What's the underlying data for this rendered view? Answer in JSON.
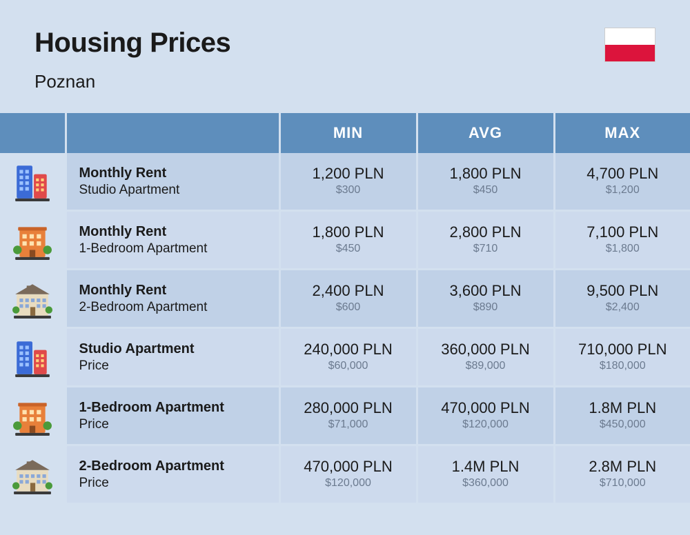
{
  "header": {
    "title": "Housing Prices",
    "city": "Poznan",
    "flag_colors": {
      "top": "#ffffff",
      "bottom": "#dc143c"
    }
  },
  "columns": {
    "min": "MIN",
    "avg": "AVG",
    "max": "MAX"
  },
  "colors": {
    "page_bg": "#d3e0ef",
    "header_row_bg": "#5e8ebc",
    "header_row_text": "#ffffff",
    "row_odd_bg": "#c0d1e7",
    "row_even_bg": "#cddaed",
    "text_primary": "#1a1a1a",
    "text_secondary": "#6b7a8f"
  },
  "icons": {
    "studio": "tall-buildings-icon",
    "onebed": "orange-apartment-icon",
    "twobed": "wide-house-icon"
  },
  "rows": [
    {
      "icon": "studio",
      "title": "Monthly Rent",
      "sub": "Studio Apartment",
      "min": {
        "pln": "1,200 PLN",
        "usd": "$300"
      },
      "avg": {
        "pln": "1,800 PLN",
        "usd": "$450"
      },
      "max": {
        "pln": "4,700 PLN",
        "usd": "$1,200"
      }
    },
    {
      "icon": "onebed",
      "title": "Monthly Rent",
      "sub": "1-Bedroom Apartment",
      "min": {
        "pln": "1,800 PLN",
        "usd": "$450"
      },
      "avg": {
        "pln": "2,800 PLN",
        "usd": "$710"
      },
      "max": {
        "pln": "7,100 PLN",
        "usd": "$1,800"
      }
    },
    {
      "icon": "twobed",
      "title": "Monthly Rent",
      "sub": "2-Bedroom Apartment",
      "min": {
        "pln": "2,400 PLN",
        "usd": "$600"
      },
      "avg": {
        "pln": "3,600 PLN",
        "usd": "$890"
      },
      "max": {
        "pln": "9,500 PLN",
        "usd": "$2,400"
      }
    },
    {
      "icon": "studio",
      "title": "Studio Apartment",
      "sub": "Price",
      "min": {
        "pln": "240,000 PLN",
        "usd": "$60,000"
      },
      "avg": {
        "pln": "360,000 PLN",
        "usd": "$89,000"
      },
      "max": {
        "pln": "710,000 PLN",
        "usd": "$180,000"
      }
    },
    {
      "icon": "onebed",
      "title": "1-Bedroom Apartment",
      "sub": "Price",
      "min": {
        "pln": "280,000 PLN",
        "usd": "$71,000"
      },
      "avg": {
        "pln": "470,000 PLN",
        "usd": "$120,000"
      },
      "max": {
        "pln": "1.8M PLN",
        "usd": "$450,000"
      }
    },
    {
      "icon": "twobed",
      "title": "2-Bedroom Apartment",
      "sub": "Price",
      "min": {
        "pln": "470,000 PLN",
        "usd": "$120,000"
      },
      "avg": {
        "pln": "1.4M PLN",
        "usd": "$360,000"
      },
      "max": {
        "pln": "2.8M PLN",
        "usd": "$710,000"
      }
    }
  ]
}
